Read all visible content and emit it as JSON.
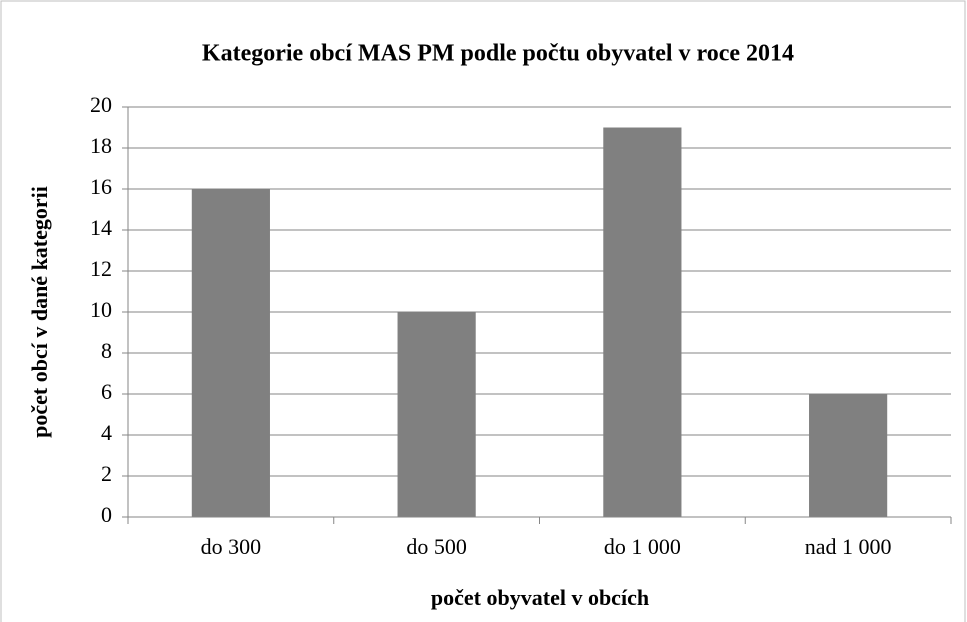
{
  "chart_data": {
    "type": "bar",
    "title": "Kategorie obcí MAS PM podle počtu obyvatel v roce 2014",
    "x_label": "počet obyvatel v obcích",
    "y_label": "počet obcí v dané kategorii",
    "categories": [
      "do 300",
      "do 500",
      "do 1 000",
      "nad 1 000"
    ],
    "values": [
      16,
      10,
      19,
      6
    ],
    "color": "#808080",
    "ylim": [
      0,
      20
    ],
    "yticks": [
      0,
      2,
      4,
      6,
      8,
      10,
      12,
      14,
      16,
      18,
      20
    ],
    "grid": true
  }
}
